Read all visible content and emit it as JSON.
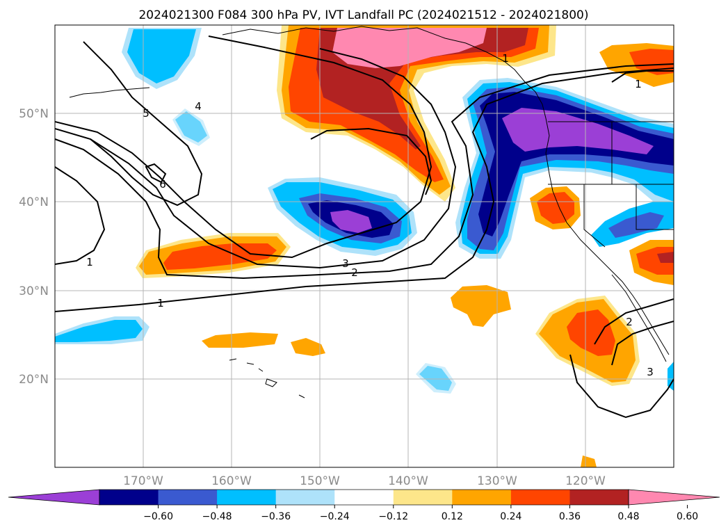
{
  "title": "2024021300 F084 300 hPa PV, IVT Landfall PC (2024021512 - 2024021800)",
  "map": {
    "lon_range": [
      -180,
      -110
    ],
    "lat_range": [
      10,
      60
    ],
    "lat_ticks": [
      {
        "value": 20,
        "label": "20°N"
      },
      {
        "value": 30,
        "label": "30°N"
      },
      {
        "value": 40,
        "label": "40°N"
      },
      {
        "value": 50,
        "label": "50°N"
      }
    ],
    "lon_ticks": [
      {
        "value": -170,
        "label": "170°W"
      },
      {
        "value": -160,
        "label": "160°W"
      },
      {
        "value": -150,
        "label": "150°W"
      },
      {
        "value": -140,
        "label": "140°W"
      },
      {
        "value": -130,
        "label": "130°W"
      },
      {
        "value": -120,
        "label": "120°W"
      }
    ],
    "grid": true,
    "pv_contour_labels": [
      "5",
      "4",
      "6",
      "1",
      "3",
      "2",
      "1",
      "2",
      "3",
      "1",
      "1"
    ]
  },
  "colorbar": {
    "levels": [
      "−0.60",
      "−0.48",
      "−0.36",
      "−0.24",
      "−0.12",
      "0.12",
      "0.24",
      "0.36",
      "0.48",
      "0.60"
    ],
    "colors": [
      "#9b3fd6",
      "#00008b",
      "#3a5ad0",
      "#00bfff",
      "#aee2fa",
      "#ffffff",
      "#fde68a",
      "#ffa500",
      "#ff4500",
      "#b22222",
      "#ff88b0"
    ],
    "extend": "both"
  }
}
